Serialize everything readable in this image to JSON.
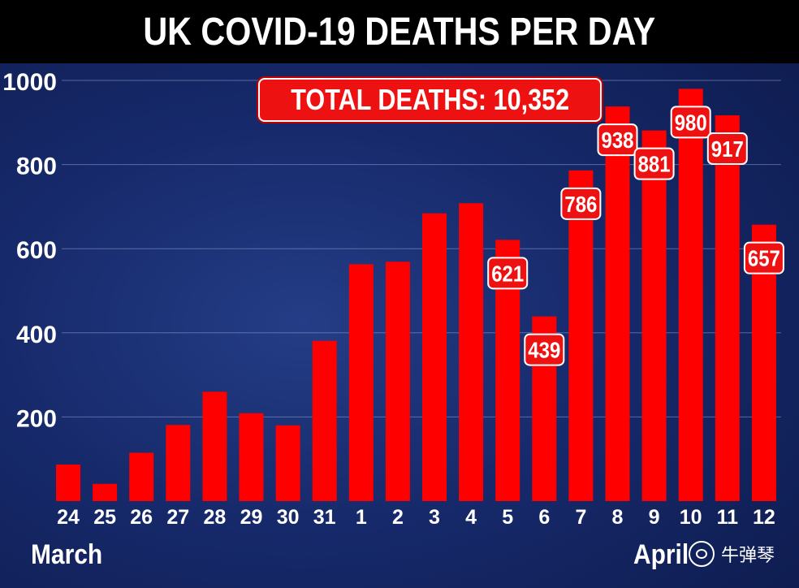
{
  "title": "UK COVID-19 DEATHS PER DAY",
  "total_label": "TOTAL DEATHS: 10,352",
  "month_left": "March",
  "month_right": "April",
  "watermark": "牛弹琴",
  "colors": {
    "bar": "#ff0000",
    "label_bg": "#ee1111",
    "title_bg": "#000000",
    "text": "#ffffff",
    "grid": "#8fa0cf"
  },
  "chart_data": {
    "type": "bar",
    "title": "UK COVID-19 DEATHS PER DAY",
    "xlabel": "",
    "ylabel": "",
    "ylim": [
      0,
      1000
    ],
    "yticks": [
      200,
      400,
      600,
      800,
      1000
    ],
    "grid": true,
    "categories": [
      "24",
      "25",
      "26",
      "27",
      "28",
      "29",
      "30",
      "31",
      "1",
      "2",
      "3",
      "4",
      "5",
      "6",
      "7",
      "8",
      "9",
      "10",
      "11",
      "12"
    ],
    "values": [
      87,
      41,
      115,
      181,
      260,
      209,
      180,
      381,
      563,
      569,
      684,
      708,
      621,
      439,
      786,
      938,
      881,
      980,
      917,
      657
    ],
    "data_labels": {
      "12": "621",
      "13": "439",
      "14": "786",
      "15": "938",
      "16": "881",
      "17": "980",
      "18": "917",
      "19": "657"
    }
  }
}
